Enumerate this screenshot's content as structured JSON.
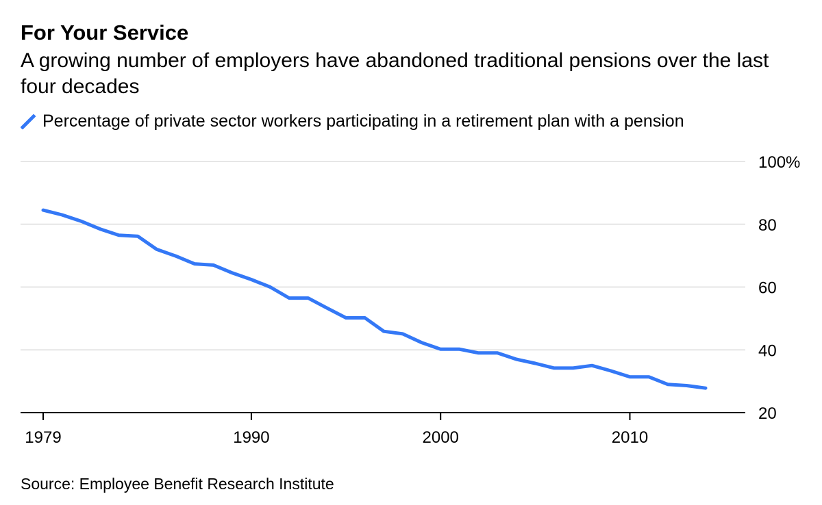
{
  "title": "For Your Service",
  "subtitle": "A growing number of employers have abandoned traditional pensions over the last four decades",
  "legend_label": "Percentage of private sector workers participating in a retirement plan with a pension",
  "source": "Source: Employee Benefit Research Institute",
  "colors": {
    "line": "#3478f6",
    "grid": "#e6e6e6",
    "axis": "#000000"
  },
  "chart_data": {
    "type": "line",
    "title": "For Your Service",
    "xlabel": "",
    "ylabel": "",
    "xlim": [
      1979,
      2014.8
    ],
    "ylim": [
      20,
      100
    ],
    "xticks": [
      {
        "value": 1979,
        "label": "1979"
      },
      {
        "value": 1990,
        "label": "1990"
      },
      {
        "value": 2000,
        "label": "2000"
      },
      {
        "value": 2010,
        "label": "2010"
      }
    ],
    "yticks": [
      {
        "value": 100,
        "label": "100%"
      },
      {
        "value": 80,
        "label": "80"
      },
      {
        "value": 60,
        "label": "60"
      },
      {
        "value": 40,
        "label": "40"
      },
      {
        "value": 20,
        "label": "20"
      }
    ],
    "grid": true,
    "legend_position": "top-left",
    "series": [
      {
        "name": "Percentage of private sector workers participating in a retirement plan with a pension",
        "x": [
          1979,
          1980,
          1981,
          1982,
          1983,
          1984,
          1985,
          1986,
          1987,
          1988,
          1989,
          1990,
          1991,
          1992,
          1993,
          1994,
          1995,
          1996,
          1997,
          1998,
          1999,
          2000,
          2001,
          2002,
          2003,
          2004,
          2005,
          2006,
          2007,
          2008,
          2009,
          2010,
          2011,
          2012,
          2013,
          2014
        ],
        "values": [
          84.5,
          83.0,
          81.0,
          78.5,
          76.5,
          76.2,
          72.0,
          69.9,
          67.4,
          67.0,
          64.5,
          62.4,
          60.0,
          56.5,
          56.5,
          53.3,
          50.2,
          50.2,
          45.9,
          45.1,
          42.3,
          40.2,
          40.2,
          39.0,
          39.0,
          37.0,
          35.7,
          34.2,
          34.2,
          35.0,
          33.3,
          31.4,
          31.4,
          29.0,
          28.6,
          27.8
        ]
      }
    ]
  }
}
